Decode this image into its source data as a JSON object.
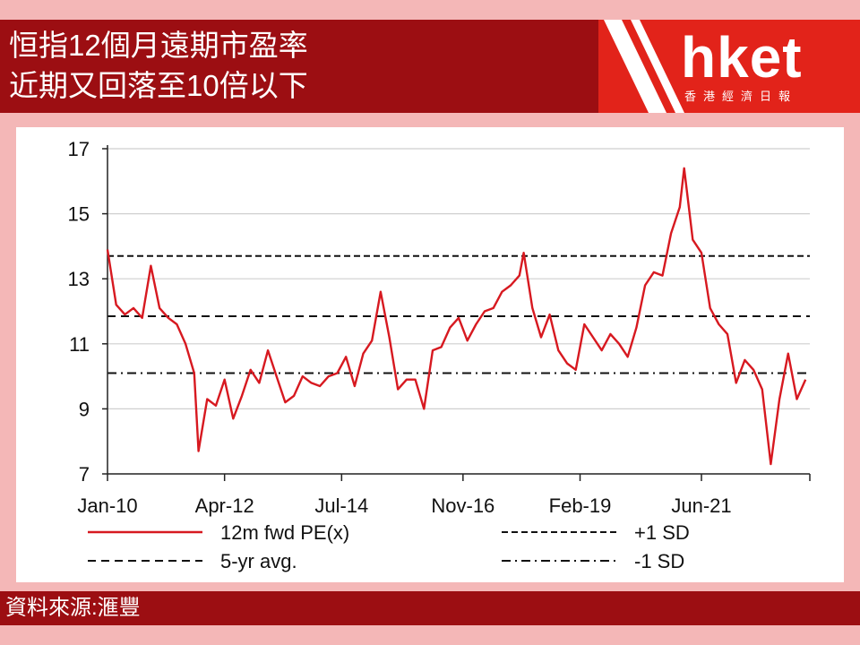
{
  "header": {
    "title_line1": "恒指12個月遠期市盈率",
    "title_line2": "近期又回落至10倍以下"
  },
  "logo": {
    "brand": "hket",
    "subtitle": "香港經濟日報"
  },
  "footer": {
    "source": "資料來源:滙豐"
  },
  "colors": {
    "header_bg": "#9c0e12",
    "logo_bg": "#e2231a",
    "page_bg": "#f4b7b7",
    "series": "#d71920"
  },
  "chart_data": {
    "type": "line",
    "title": "",
    "xlabel": "",
    "ylabel": "",
    "ylim": [
      7,
      17
    ],
    "yticks": [
      7,
      9,
      11,
      13,
      15,
      17
    ],
    "xlim": [
      "2010-01",
      "2023-07"
    ],
    "xtick_labels": [
      "Jan-10",
      "Apr-12",
      "Jul-14",
      "Nov-16",
      "Feb-19",
      "Jun-21"
    ],
    "xtick_dates": [
      "2010-01",
      "2012-04",
      "2014-07",
      "2016-11",
      "2019-02",
      "2021-06"
    ],
    "grid": "horizontal",
    "legend_position": "bottom",
    "reference_lines": [
      {
        "name": "+1 SD",
        "value": 13.7,
        "style": "dashed-fine"
      },
      {
        "name": "5-yr avg.",
        "value": 11.85,
        "style": "dashed"
      },
      {
        "name": "-1 SD",
        "value": 10.1,
        "style": "dash-dot"
      }
    ],
    "series": [
      {
        "name": "12m fwd PE(x)",
        "x": [
          "2010-01",
          "2010-03",
          "2010-05",
          "2010-07",
          "2010-09",
          "2010-11",
          "2011-01",
          "2011-03",
          "2011-05",
          "2011-07",
          "2011-09",
          "2011-10",
          "2011-12",
          "2012-02",
          "2012-04",
          "2012-06",
          "2012-08",
          "2012-10",
          "2012-12",
          "2013-02",
          "2013-04",
          "2013-06",
          "2013-08",
          "2013-10",
          "2013-12",
          "2014-02",
          "2014-04",
          "2014-06",
          "2014-08",
          "2014-10",
          "2014-12",
          "2015-02",
          "2015-04",
          "2015-06",
          "2015-08",
          "2015-10",
          "2015-12",
          "2016-02",
          "2016-04",
          "2016-06",
          "2016-08",
          "2016-10",
          "2016-12",
          "2017-02",
          "2017-04",
          "2017-06",
          "2017-08",
          "2017-10",
          "2017-12",
          "2018-01",
          "2018-03",
          "2018-05",
          "2018-07",
          "2018-09",
          "2018-11",
          "2019-01",
          "2019-03",
          "2019-05",
          "2019-07",
          "2019-09",
          "2019-11",
          "2020-01",
          "2020-03",
          "2020-05",
          "2020-07",
          "2020-09",
          "2020-11",
          "2021-01",
          "2021-02",
          "2021-04",
          "2021-06",
          "2021-08",
          "2021-10",
          "2021-12",
          "2022-02",
          "2022-04",
          "2022-06",
          "2022-08",
          "2022-10",
          "2022-12",
          "2023-02",
          "2023-04",
          "2023-06"
        ],
        "values": [
          13.9,
          12.2,
          11.9,
          12.1,
          11.8,
          13.4,
          12.1,
          11.8,
          11.6,
          11.0,
          10.1,
          7.7,
          9.3,
          9.1,
          9.9,
          8.7,
          9.4,
          10.2,
          9.8,
          10.8,
          10.0,
          9.2,
          9.4,
          10.0,
          9.8,
          9.7,
          10.0,
          10.1,
          10.6,
          9.7,
          10.7,
          11.1,
          12.6,
          11.2,
          9.6,
          9.9,
          9.9,
          9.0,
          10.8,
          10.9,
          11.5,
          11.8,
          11.1,
          11.6,
          12.0,
          12.1,
          12.6,
          12.8,
          13.1,
          13.8,
          12.1,
          11.2,
          11.9,
          10.8,
          10.4,
          10.2,
          11.6,
          11.2,
          10.8,
          11.3,
          11.0,
          10.6,
          11.5,
          12.8,
          13.2,
          13.1,
          14.4,
          15.2,
          16.4,
          14.2,
          13.8,
          12.1,
          11.6,
          11.3,
          9.8,
          10.5,
          10.2,
          9.6,
          7.3,
          9.3,
          10.7,
          9.3,
          9.9
        ]
      }
    ]
  }
}
